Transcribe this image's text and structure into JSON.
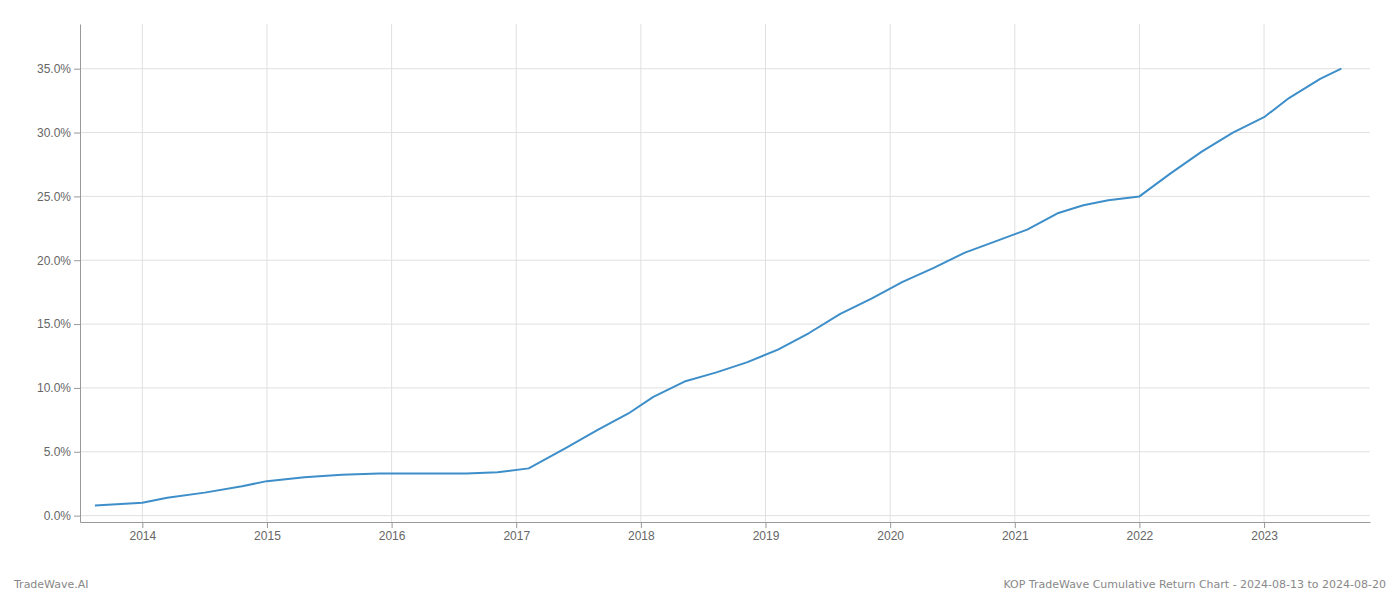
{
  "chart_data": {
    "type": "line",
    "x": [
      2013.62,
      2014.0,
      2014.2,
      2014.5,
      2014.8,
      2015.0,
      2015.3,
      2015.6,
      2015.9,
      2016.1,
      2016.4,
      2016.6,
      2016.85,
      2017.1,
      2017.4,
      2017.65,
      2017.9,
      2018.1,
      2018.35,
      2018.6,
      2018.85,
      2019.1,
      2019.35,
      2019.6,
      2019.85,
      2020.1,
      2020.35,
      2020.6,
      2020.85,
      2021.1,
      2021.35,
      2021.55,
      2021.75,
      2022.0,
      2022.25,
      2022.5,
      2022.75,
      2023.0,
      2023.2,
      2023.45,
      2023.62
    ],
    "values": [
      0.008,
      0.01,
      0.014,
      0.018,
      0.023,
      0.027,
      0.03,
      0.032,
      0.033,
      0.033,
      0.033,
      0.033,
      0.034,
      0.037,
      0.053,
      0.067,
      0.08,
      0.093,
      0.105,
      0.112,
      0.12,
      0.13,
      0.143,
      0.158,
      0.17,
      0.183,
      0.194,
      0.206,
      0.215,
      0.224,
      0.237,
      0.243,
      0.247,
      0.25,
      0.268,
      0.285,
      0.3,
      0.312,
      0.327,
      0.342,
      0.35
    ],
    "color": "#3d8ec9",
    "xlim": [
      2013.5,
      2023.85
    ],
    "ylim": [
      -0.005,
      0.385
    ],
    "xticks": [
      2014,
      2015,
      2016,
      2017,
      2018,
      2019,
      2020,
      2021,
      2022,
      2023
    ],
    "yticks": [
      {
        "value": 0.0,
        "label": "0.0%"
      },
      {
        "value": 0.05,
        "label": "5.0%"
      },
      {
        "value": 0.1,
        "label": "10.0%"
      },
      {
        "value": 0.15,
        "label": "15.0%"
      },
      {
        "value": 0.2,
        "label": "20.0%"
      },
      {
        "value": 0.25,
        "label": "25.0%"
      },
      {
        "value": 0.3,
        "label": "30.0%"
      },
      {
        "value": 0.35,
        "label": "35.0%"
      }
    ],
    "grid": true,
    "annotations": [
      "TradeWave.AI",
      "KOP TradeWave Cumulative Return Chart - 2024-08-13 to 2024-08-20"
    ]
  }
}
